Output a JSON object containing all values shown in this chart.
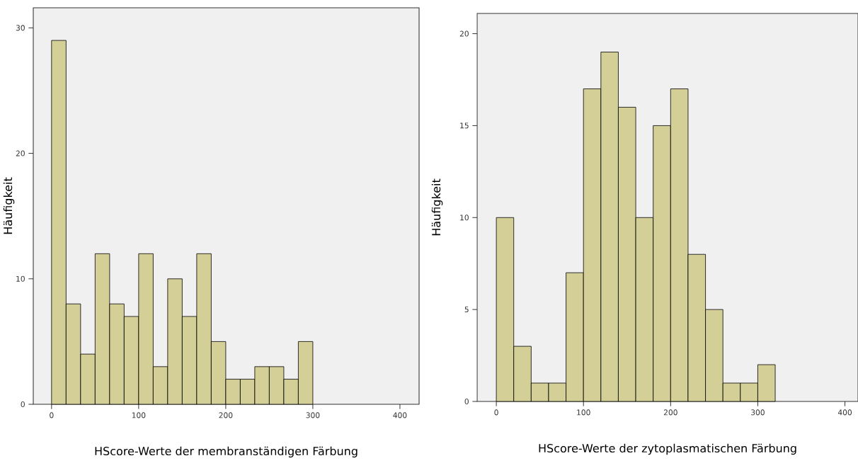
{
  "chart_data": [
    {
      "type": "histogram",
      "xlabel": "HScore-Werte der membranständigen Färbung",
      "ylabel": "Häufigkeit",
      "color": "#d3cf97",
      "bins": [
        0,
        16.67,
        33.33,
        50,
        66.67,
        83.33,
        100,
        116.67,
        133.33,
        150,
        166.67,
        183.33,
        200,
        216.67,
        233.33,
        250,
        266.67,
        283.33,
        300
      ],
      "values": [
        29,
        8,
        4,
        12,
        8,
        7,
        12,
        3,
        10,
        7,
        12,
        5,
        2,
        2,
        3,
        3,
        2,
        5
      ],
      "xlim": [
        -21,
        422
      ],
      "ylim": [
        0,
        31.6
      ],
      "xticks": [
        0,
        100,
        200,
        300,
        400
      ],
      "yticks": [
        0,
        10,
        20,
        30
      ]
    },
    {
      "type": "histogram",
      "xlabel": "HScore-Werte der zytoplasmatischen Färbung",
      "ylabel": "Häufigkeit",
      "color": "#d3cf97",
      "bins": [
        0,
        20,
        40,
        60,
        80,
        100,
        120,
        140,
        160,
        180,
        200,
        220,
        240,
        260,
        280,
        300,
        320
      ],
      "values": [
        10,
        3,
        1,
        1,
        7,
        17,
        19,
        16,
        10,
        15,
        17,
        8,
        5,
        1,
        1,
        2
      ],
      "xlim": [
        -22,
        415
      ],
      "ylim": [
        0,
        21.1
      ],
      "xticks": [
        0,
        100,
        200,
        300,
        400
      ],
      "yticks": [
        0,
        5,
        10,
        15,
        20
      ]
    }
  ]
}
